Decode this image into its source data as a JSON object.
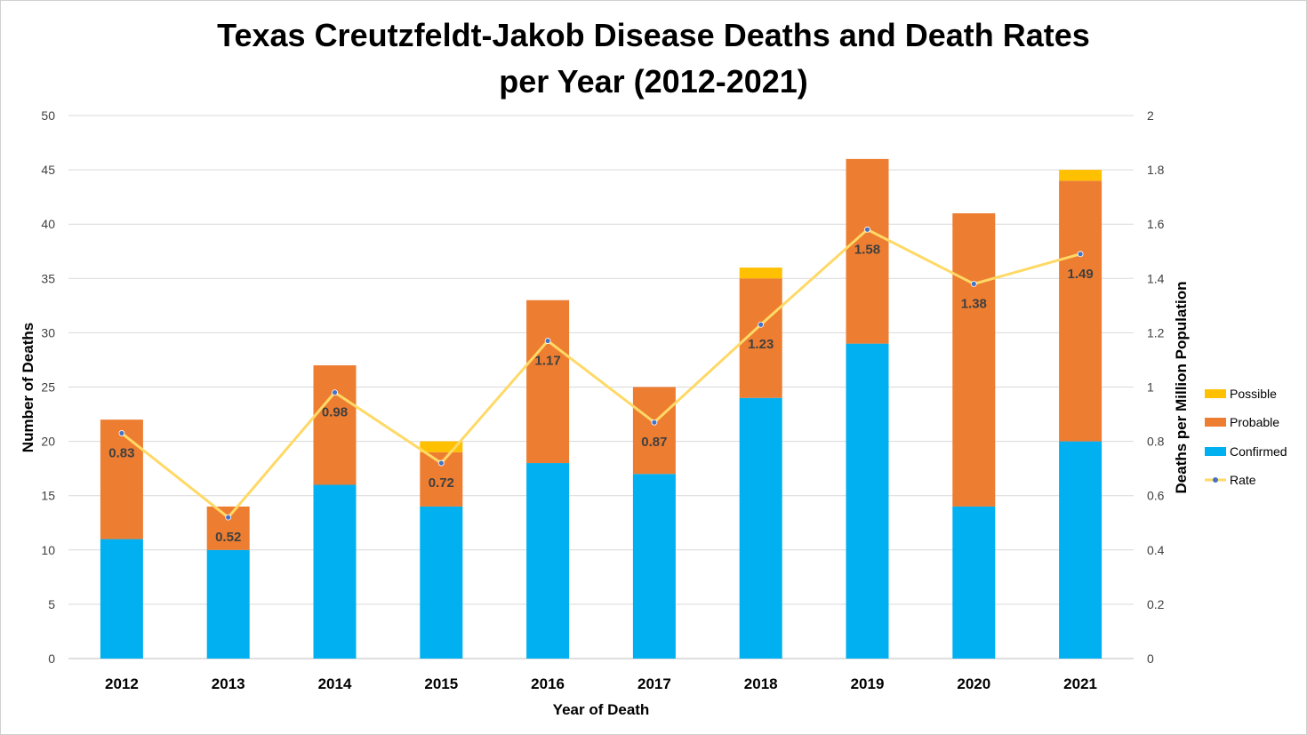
{
  "chart_data": {
    "type": "bar",
    "stacked": true,
    "title": "Texas Creutzfeldt-Jakob Disease Deaths and Death Rates\nper Year (2012-2021)",
    "xlabel": "Year of Death",
    "ylabel": "Number of Deaths",
    "y2label": "Deaths per Million Population",
    "ylim": [
      0,
      50
    ],
    "y2lim": [
      0,
      2
    ],
    "yticks": [
      "0",
      "5",
      "10",
      "15",
      "20",
      "25",
      "30",
      "35",
      "40",
      "45",
      "50"
    ],
    "y2ticks": [
      "0",
      "0.2",
      "0.4",
      "0.6",
      "0.8",
      "1",
      "1.2",
      "1.4",
      "1.6",
      "1.8",
      "2"
    ],
    "grid": true,
    "legend_position": "right",
    "categories": [
      "2012",
      "2013",
      "2014",
      "2015",
      "2016",
      "2017",
      "2018",
      "2019",
      "2020",
      "2021"
    ],
    "series": [
      {
        "name": "Confirmed",
        "type": "bar",
        "color": "#00B0F0",
        "values": [
          11,
          10,
          16,
          14,
          18,
          17,
          24,
          29,
          14,
          20
        ]
      },
      {
        "name": "Probable",
        "type": "bar",
        "color": "#ED7D31",
        "values": [
          11,
          4,
          11,
          5,
          15,
          8,
          11,
          17,
          27,
          24
        ]
      },
      {
        "name": "Possible",
        "type": "bar",
        "color": "#FFC000",
        "values": [
          0,
          0,
          0,
          1,
          0,
          0,
          1,
          0,
          0,
          1
        ]
      },
      {
        "name": "Rate",
        "type": "line",
        "axis": "secondary",
        "color": "#FFD966",
        "marker_color": "#4472C4",
        "values": [
          0.83,
          0.52,
          0.98,
          0.72,
          1.17,
          0.87,
          1.23,
          1.58,
          1.38,
          1.49
        ],
        "labels": [
          "0.83",
          "0.52",
          "0.98",
          "0.72",
          "1.17",
          "0.87",
          "1.23",
          "1.58",
          "1.38",
          "1.49"
        ]
      }
    ],
    "legend_order": [
      "Possible",
      "Probable",
      "Confirmed",
      "Rate"
    ]
  }
}
